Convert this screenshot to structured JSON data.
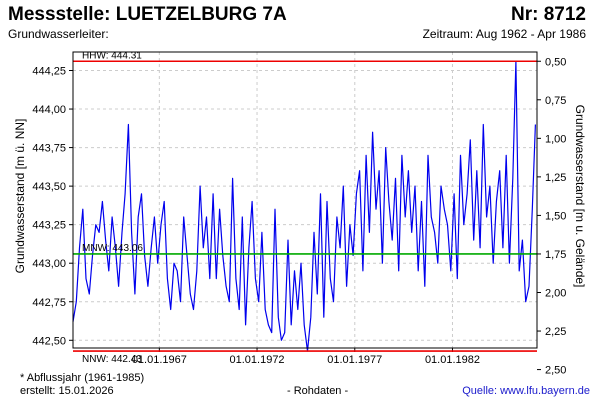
{
  "header": {
    "title": "Messstelle: LUETZELBURG 7A",
    "number": "Nr: 8712",
    "aquifer": "Grundwasserleiter:",
    "period": "Zeitraum: Aug 1962 - Apr 1986"
  },
  "footer": {
    "footnote": "* Abflussjahr (1961-1985)",
    "created": "erstellt:  15.01.2026",
    "raw_data": "- Rohdaten -",
    "source": "Quelle:  www.lfu.bayern.de"
  },
  "colors": {
    "series": "#0000ee",
    "hhw_line": "#ee0000",
    "nnw_line": "#ee0000",
    "mnw_line": "#00aa00",
    "grid": "#cccccc"
  },
  "chart_data": {
    "type": "line",
    "ylabel": "Grundwasserstand [m ü. NN]",
    "ylabel_right": "Grundwasserstand [m u. Gelände]",
    "ylim": [
      442.45,
      444.37
    ],
    "xlim": [
      "1962-08-01",
      "1986-04-30"
    ],
    "grid": true,
    "y_ticks": [
      "442,50",
      "442,75",
      "443,00",
      "443,25",
      "443,50",
      "443,75",
      "444,00",
      "444,25"
    ],
    "y_tick_values": [
      442.5,
      442.75,
      443.0,
      443.25,
      443.5,
      443.75,
      444.0,
      444.25
    ],
    "right_ticks": [
      "0,50",
      "0,75",
      "1,00",
      "1,25",
      "1,50",
      "1,75",
      "2,00",
      "2,25",
      "2,50"
    ],
    "right_tick_values": [
      0.5,
      0.75,
      1.0,
      1.25,
      1.5,
      1.75,
      2.0,
      2.25,
      2.5
    ],
    "right_zero_level": 444.81,
    "x_ticks": [
      "01.01.1967",
      "01.01.1972",
      "01.01.1977",
      "01.01.1982"
    ],
    "x_tick_values": [
      "1967-01-01",
      "1972-01-01",
      "1977-01-01",
      "1982-01-01"
    ],
    "reference_lines": [
      {
        "label": "HHW: 444.31",
        "value": 444.31,
        "color": "#ee0000"
      },
      {
        "label": "MNW: 443.06",
        "value": 443.06,
        "color": "#00aa00"
      },
      {
        "label": "NNW: 442.43",
        "value": 442.43,
        "color": "#ee0000"
      }
    ],
    "series": [
      {
        "x": [
          "1962-08-01",
          "1962-10-01",
          "1962-12-01",
          "1963-02-01",
          "1963-04-01",
          "1963-06-01",
          "1963-08-01",
          "1963-10-01",
          "1963-12-01",
          "1964-02-01",
          "1964-04-01",
          "1964-06-01",
          "1964-08-01",
          "1964-10-01",
          "1964-12-01",
          "1965-02-01",
          "1965-04-01",
          "1965-06-01",
          "1965-08-01",
          "1965-10-01",
          "1965-12-01",
          "1966-02-01",
          "1966-04-01",
          "1966-06-01",
          "1966-08-01",
          "1966-10-01",
          "1966-12-01",
          "1967-02-01",
          "1967-04-01",
          "1967-06-01",
          "1967-08-01",
          "1967-10-01",
          "1967-12-01",
          "1968-02-01",
          "1968-04-01",
          "1968-06-01",
          "1968-08-01",
          "1968-10-01",
          "1968-12-01",
          "1969-02-01",
          "1969-04-01",
          "1969-06-01",
          "1969-08-01",
          "1969-10-01",
          "1969-12-01",
          "1970-02-01",
          "1970-04-01",
          "1970-06-01",
          "1970-08-01",
          "1970-10-01",
          "1970-12-01",
          "1971-02-01",
          "1971-04-01",
          "1971-06-01",
          "1971-08-01",
          "1971-10-01",
          "1971-12-01",
          "1972-02-01",
          "1972-04-01",
          "1972-06-01",
          "1972-08-01",
          "1972-10-01",
          "1972-12-01",
          "1973-02-01",
          "1973-04-01",
          "1973-06-01",
          "1973-08-01",
          "1973-10-01",
          "1973-12-01",
          "1974-02-01",
          "1974-04-01",
          "1974-06-01",
          "1974-08-01",
          "1974-10-01",
          "1974-12-01",
          "1975-02-01",
          "1975-04-01",
          "1975-06-01",
          "1975-08-01",
          "1975-10-01",
          "1975-12-01",
          "1976-02-01",
          "1976-04-01",
          "1976-06-01",
          "1976-08-01",
          "1976-10-01",
          "1976-12-01",
          "1977-02-01",
          "1977-04-01",
          "1977-06-01",
          "1977-08-01",
          "1977-10-01",
          "1977-12-01",
          "1978-02-01",
          "1978-04-01",
          "1978-06-01",
          "1978-08-01",
          "1978-10-01",
          "1978-12-01",
          "1979-02-01",
          "1979-04-01",
          "1979-06-01",
          "1979-08-01",
          "1979-10-01",
          "1979-12-01",
          "1980-02-01",
          "1980-04-01",
          "1980-06-01",
          "1980-08-01",
          "1980-10-01",
          "1980-12-01",
          "1981-02-01",
          "1981-04-01",
          "1981-06-01",
          "1981-08-01",
          "1981-10-01",
          "1981-12-01",
          "1982-02-01",
          "1982-04-01",
          "1982-06-01",
          "1982-08-01",
          "1982-10-01",
          "1982-12-01",
          "1983-02-01",
          "1983-04-01",
          "1983-06-01",
          "1983-08-01",
          "1983-10-01",
          "1983-12-01",
          "1984-02-01",
          "1984-04-01",
          "1984-06-01",
          "1984-08-01",
          "1984-10-01",
          "1984-12-01",
          "1985-02-01",
          "1985-04-01",
          "1985-06-01",
          "1985-08-01",
          "1985-10-01",
          "1985-12-01",
          "1986-02-01",
          "1986-04-01"
        ],
        "values": [
          442.62,
          442.75,
          443.1,
          443.35,
          442.9,
          442.8,
          443.05,
          443.25,
          443.2,
          443.4,
          443.15,
          442.95,
          443.3,
          443.1,
          442.85,
          443.2,
          443.45,
          443.9,
          443.2,
          442.8,
          443.3,
          443.45,
          443.05,
          442.85,
          443.1,
          443.3,
          443.0,
          443.25,
          443.4,
          442.9,
          442.7,
          443.0,
          442.95,
          442.75,
          443.3,
          443.05,
          442.8,
          442.7,
          442.95,
          443.5,
          443.1,
          443.3,
          442.9,
          443.45,
          442.9,
          443.35,
          443.05,
          442.85,
          442.75,
          443.55,
          442.9,
          442.7,
          443.3,
          442.6,
          443.1,
          443.4,
          442.9,
          442.75,
          443.2,
          442.7,
          442.6,
          442.55,
          443.35,
          442.65,
          442.5,
          442.55,
          443.15,
          442.6,
          442.95,
          442.7,
          443.0,
          442.6,
          442.43,
          442.65,
          443.2,
          442.8,
          443.45,
          442.65,
          443.4,
          442.9,
          442.75,
          443.3,
          443.1,
          443.5,
          442.85,
          443.25,
          443.05,
          443.45,
          443.6,
          442.95,
          443.7,
          443.2,
          443.85,
          443.35,
          443.6,
          443.0,
          443.75,
          443.4,
          443.15,
          443.55,
          442.95,
          443.7,
          443.3,
          443.6,
          443.2,
          443.5,
          442.95,
          443.4,
          442.85,
          443.7,
          443.3,
          443.2,
          443.0,
          443.5,
          443.35,
          443.25,
          442.95,
          443.45,
          442.9,
          443.7,
          443.25,
          443.45,
          443.8,
          443.15,
          443.6,
          443.1,
          443.9,
          443.3,
          443.5,
          443.0,
          443.4,
          443.6,
          443.1,
          443.7,
          443.0,
          443.55,
          444.31,
          442.95,
          443.15,
          442.75,
          442.85,
          443.35,
          443.9
        ]
      }
    ]
  }
}
